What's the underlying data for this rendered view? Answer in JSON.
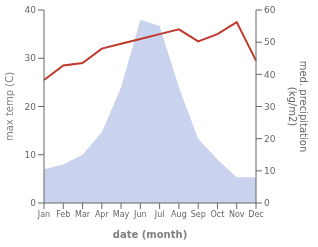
{
  "chart_data": {
    "type": "line",
    "categories": [
      "Jan",
      "Feb",
      "Mar",
      "Apr",
      "May",
      "Jun",
      "Jul",
      "Aug",
      "Sep",
      "Oct",
      "Nov",
      "Dec"
    ],
    "series": [
      {
        "type": "area",
        "axis": "y2",
        "color": "#b8c4e8",
        "values": [
          10.5,
          12,
          15,
          22,
          36,
          57,
          55,
          36,
          20,
          13.5,
          8,
          8
        ]
      },
      {
        "type": "line",
        "color": "#c0392b",
        "values": [
          25.5,
          28.5,
          29,
          32,
          33,
          34,
          35,
          36,
          33.5,
          35,
          37.5,
          29.5
        ]
      }
    ],
    "xlabel": "date (month)",
    "ylabel": "max temp (C)",
    "y2label": "med. precipitation\n(kg/m2)",
    "ylim": [
      0,
      40
    ],
    "yticks": [
      0,
      10,
      20,
      30,
      40
    ],
    "y2lim": [
      0,
      60
    ],
    "y2ticks": [
      0,
      10,
      20,
      30,
      40,
      50,
      60
    ],
    "grid": false
  }
}
